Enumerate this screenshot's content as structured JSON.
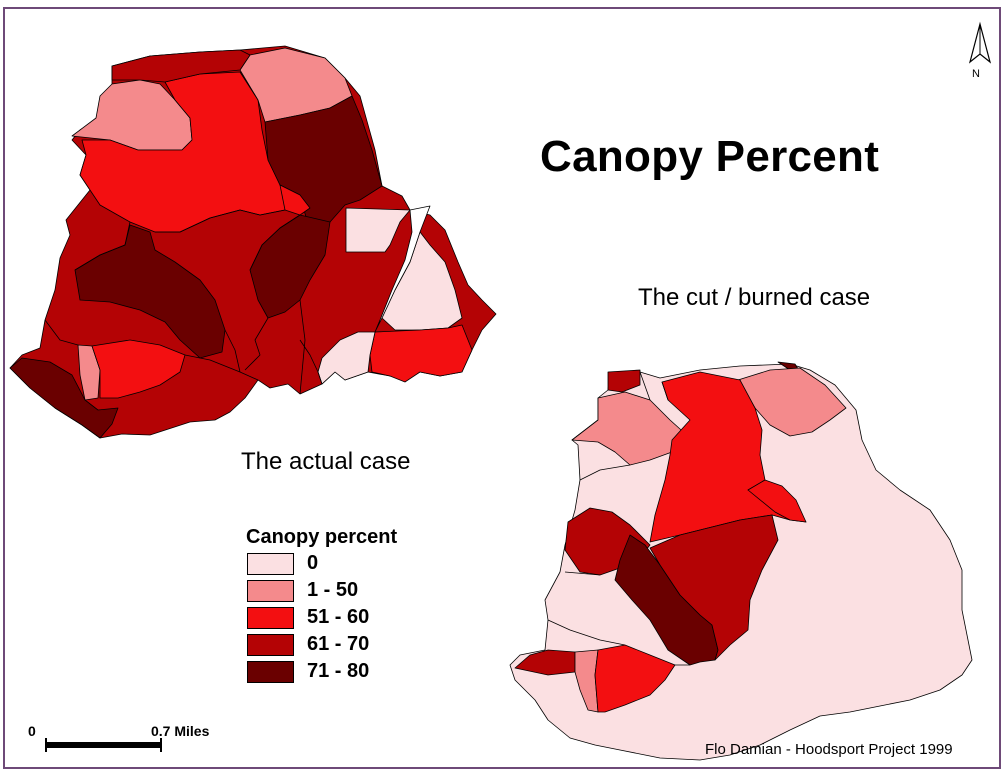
{
  "title": "Canopy Percent",
  "subtitles": {
    "cut_case": "The cut / burned case",
    "actual_case": "The actual case"
  },
  "legend": {
    "title": "Canopy percent",
    "classes": [
      {
        "label": "0",
        "color": "#fbe0e2"
      },
      {
        "label": "1 - 50",
        "color": "#f48a8c"
      },
      {
        "label": "51 - 60",
        "color": "#f30f11"
      },
      {
        "label": "61 - 70",
        "color": "#b40305"
      },
      {
        "label": "71 - 80",
        "color": "#6a0000"
      }
    ]
  },
  "scale_bar": {
    "start_label": "0",
    "end_label": "0.7  Miles"
  },
  "north_arrow": {
    "label": "N",
    "icon": "north-arrow-icon"
  },
  "credit": "Flo Damian - Hoodsport Project 1999"
}
